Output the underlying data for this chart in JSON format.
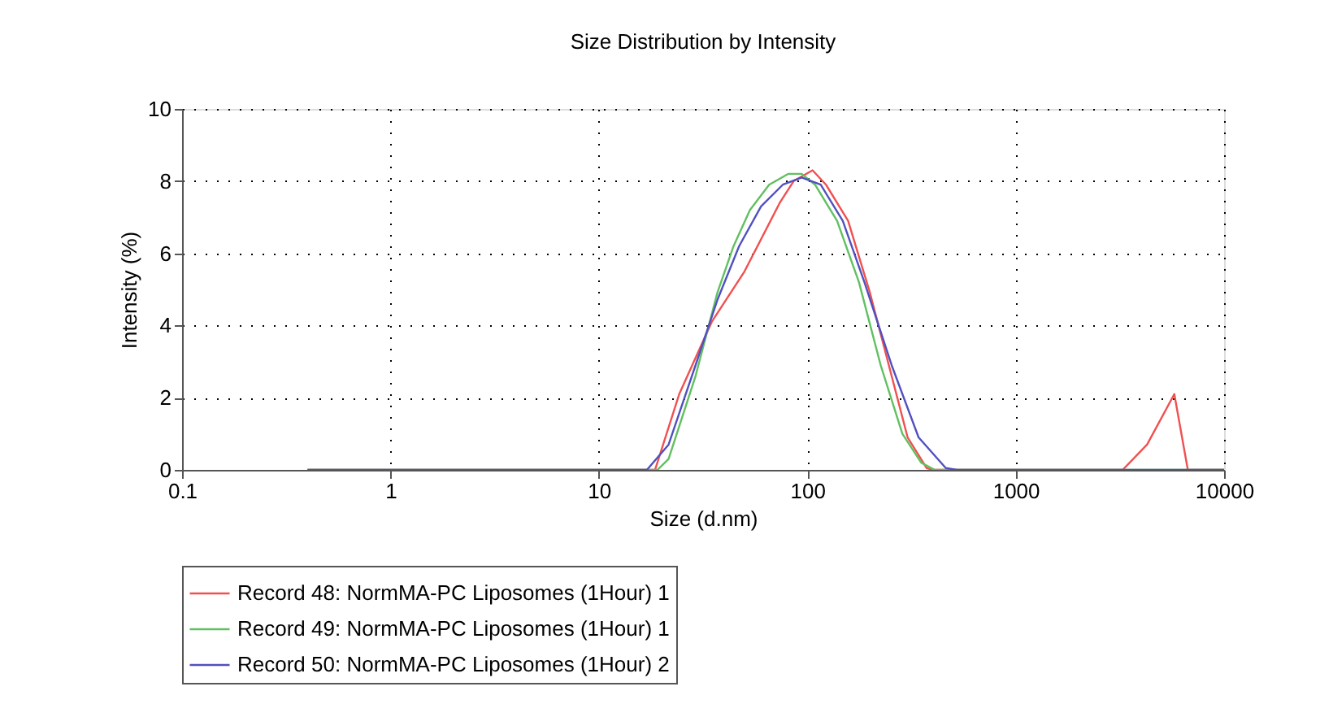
{
  "chart_data": {
    "type": "line",
    "title": "Size Distribution by Intensity",
    "xlabel": "Size (d.nm)",
    "ylabel": "Intensity (%)",
    "log": "x",
    "xlim": [
      0.1,
      10000
    ],
    "xticks": [
      0.1,
      1,
      10,
      100,
      1000,
      10000
    ],
    "ylim": [
      0,
      10
    ],
    "yticks": [
      0,
      2,
      4,
      6,
      8,
      10
    ],
    "grid": true,
    "legend": "bottom",
    "line_style": "solid",
    "series": [
      {
        "name": "Record 48: NormMA-PC Liposomes (1Hour) 1",
        "color": "#f05050",
        "x": [
          0.4,
          18.6,
          24.3,
          34.8,
          50,
          73.8,
          86,
          106,
          123,
          157,
          200,
          254,
          303,
          374,
          400,
          3260,
          4270,
          5770,
          6700,
          10000
        ],
        "values": [
          0,
          0,
          2.1,
          4.1,
          5.5,
          7.4,
          8.0,
          8.3,
          7.9,
          6.9,
          4.9,
          2.6,
          0.9,
          0.05,
          0,
          0,
          0.7,
          2.1,
          0,
          0
        ]
      },
      {
        "name": "Record 49: NormMA-PC Liposomes (1Hour) 1",
        "color": "#60c060",
        "x": [
          0.4,
          19.1,
          21.6,
          29.1,
          37,
          44.3,
          53.1,
          65.6,
          80.9,
          94,
          109,
          139,
          177,
          225,
          286,
          352,
          409,
          10000
        ],
        "values": [
          0,
          0,
          0.3,
          2.6,
          4.9,
          6.2,
          7.2,
          7.9,
          8.2,
          8.2,
          7.9,
          6.9,
          5.2,
          2.9,
          1.0,
          0.2,
          0,
          0
        ]
      },
      {
        "name": "Record 50: NormMA-PC Liposomes (1Hour) 2",
        "color": "#5050c0",
        "x": [
          0.4,
          17,
          21.6,
          29.1,
          37,
          47.1,
          60,
          76.3,
          94,
          116,
          148,
          188,
          254,
          342,
          462,
          522,
          10000
        ],
        "values": [
          0,
          0,
          0.7,
          2.9,
          4.7,
          6.2,
          7.3,
          7.9,
          8.1,
          7.9,
          6.9,
          5.2,
          2.9,
          0.9,
          0.05,
          0,
          0
        ]
      }
    ]
  }
}
